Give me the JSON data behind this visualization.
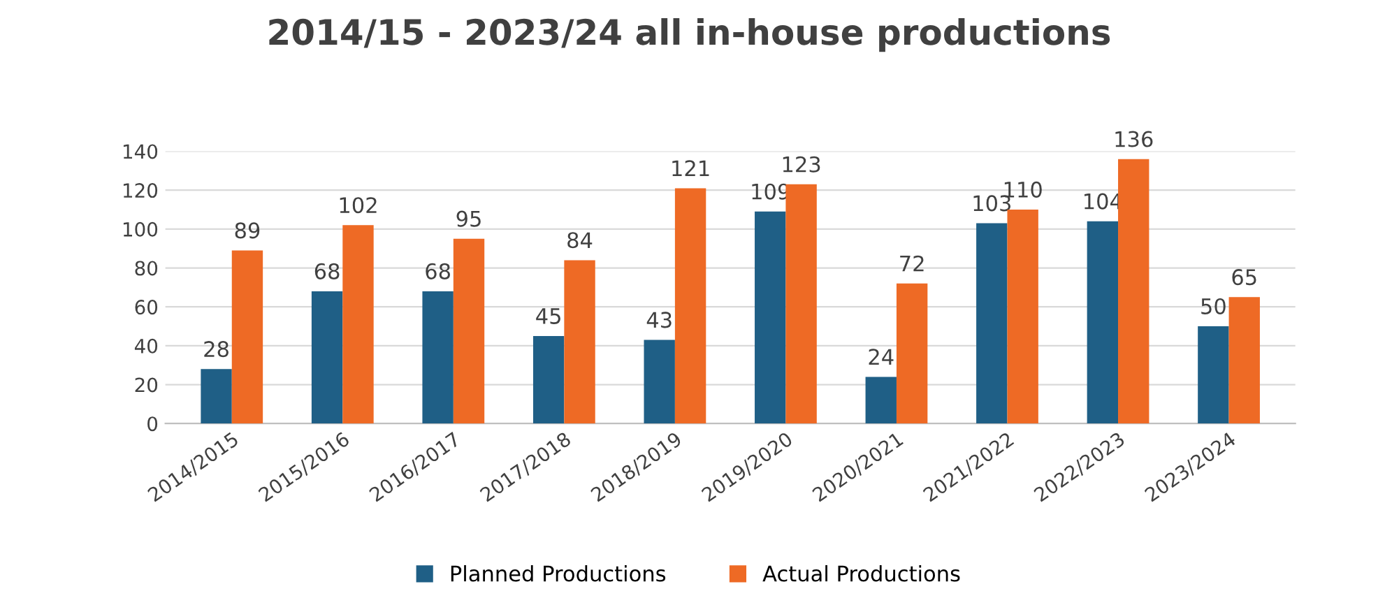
{
  "chart_data": {
    "type": "bar",
    "title": "2014/15 - 2023/24 all in-house productions",
    "categories": [
      "2014/2015",
      "2015/2016",
      "2016/2017",
      "2017/2018",
      "2018/2019",
      "2019/2020",
      "2020/2021",
      "2021/2022",
      "2022/2023",
      "2023/2024"
    ],
    "series": [
      {
        "name": "Planned Productions",
        "color": "#1f5f86",
        "values": [
          28,
          68,
          68,
          45,
          43,
          109,
          24,
          103,
          104,
          50
        ]
      },
      {
        "name": "Actual Productions",
        "color": "#ee6a25",
        "values": [
          89,
          102,
          95,
          84,
          121,
          123,
          72,
          110,
          136,
          65
        ]
      }
    ],
    "ylim": [
      0,
      140
    ],
    "yticks": [
      0,
      20,
      40,
      60,
      80,
      100,
      120,
      140
    ],
    "grid": "y",
    "legend": "bottom",
    "data_labels": true
  }
}
